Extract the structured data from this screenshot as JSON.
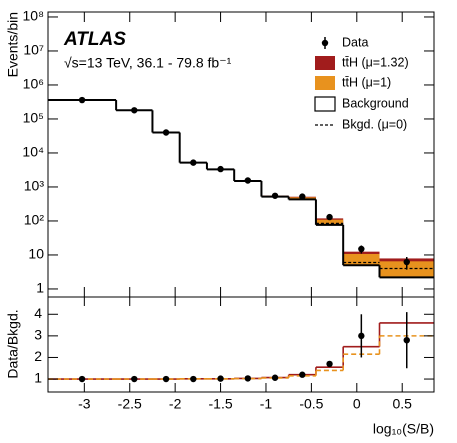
{
  "chart_data": [
    {
      "type": "histogram",
      "title": "ATLAS",
      "subtitle": "√s=13 TeV, 36.1 - 79.8 fb⁻¹",
      "ylabel": "Events/bin",
      "log_y": true,
      "bins": [
        -3.4,
        -2.65,
        -2.25,
        -1.95,
        -1.65,
        -1.35,
        -1.05,
        -0.75,
        -0.45,
        -0.15,
        0.25,
        0.85
      ],
      "series": [
        {
          "name": "Data",
          "color": "#000000",
          "x": [
            -3.025,
            -2.45,
            -2.1,
            -1.8,
            -1.5,
            -1.2,
            -0.9,
            -0.6,
            -0.3,
            0.05,
            0.55
          ],
          "values": [
            360000,
            180000,
            40000,
            5200,
            3350,
            1550,
            550,
            520,
            130,
            15,
            6.2
          ],
          "errors": [
            600,
            420,
            200,
            72,
            58,
            39,
            23,
            23,
            11,
            4,
            2.5
          ]
        },
        {
          "name": "tt̄H (μ=1.32)",
          "color": "#a11c1c",
          "values": [
            300,
            250,
            150,
            40,
            33,
            45,
            36,
            86,
            42,
            7.5,
            5.7
          ]
        },
        {
          "name": "tt̄H (μ=1)",
          "color": "#e8921e",
          "values": [
            230,
            190,
            115,
            30,
            25,
            34,
            27,
            65,
            32,
            5.7,
            4.3
          ]
        },
        {
          "name": "Background",
          "color": "#ffffff",
          "values": [
            360000,
            180000,
            40000,
            5200,
            3300,
            1500,
            520,
            430,
            77,
            5.0,
            2.2
          ]
        },
        {
          "name": "Bkgd. (μ=0)",
          "color": "#000000",
          "style": "dashed",
          "values": [
            360000,
            180000,
            40000,
            5200,
            3300,
            1500,
            525,
            440,
            85,
            6.0,
            4.0
          ]
        }
      ],
      "ylim": [
        0.58,
        140000000
      ],
      "yticks": [
        1,
        10,
        {
          "value": 100,
          "label": "10²"
        },
        {
          "value": 1000,
          "label": "10³"
        },
        {
          "value": 10000,
          "label": "10⁴"
        },
        {
          "value": 100000,
          "label": "10⁵"
        },
        {
          "value": 1000000,
          "label": "10⁶"
        },
        {
          "value": 10000000,
          "label": "10⁷"
        },
        {
          "value": 100000000,
          "label": "10⁸"
        }
      ]
    },
    {
      "type": "ratio",
      "ylabel": "Data/Bkgd.",
      "xlabel": "log₁₀(S/B)",
      "xlim": [
        -3.4,
        0.85
      ],
      "xticks": [
        -3,
        -2.5,
        -2,
        -1.5,
        -1,
        -0.5,
        0,
        0.5
      ],
      "ylim": [
        0.4,
        4.8
      ],
      "yticks": [
        1,
        2,
        3,
        4
      ],
      "series": [
        {
          "color": "#000000",
          "values": [
            1.0,
            1.0,
            1.0,
            1.0,
            1.02,
            1.03,
            1.06,
            1.2,
            1.7,
            3.0,
            2.8
          ],
          "errors": [
            0.01,
            0.01,
            0.01,
            0.02,
            0.02,
            0.03,
            0.05,
            0.06,
            0.12,
            1.0,
            1.3
          ]
        },
        {
          "color": "#a11c1c",
          "values": [
            1.0,
            1.0,
            1.0,
            1.01,
            1.01,
            1.03,
            1.07,
            1.2,
            1.55,
            2.5,
            3.6
          ]
        },
        {
          "color": "#e8921e",
          "style": "dashed",
          "values": [
            1.0,
            1.0,
            1.0,
            1.01,
            1.01,
            1.02,
            1.05,
            1.15,
            1.4,
            2.15,
            3.0
          ]
        }
      ]
    }
  ]
}
